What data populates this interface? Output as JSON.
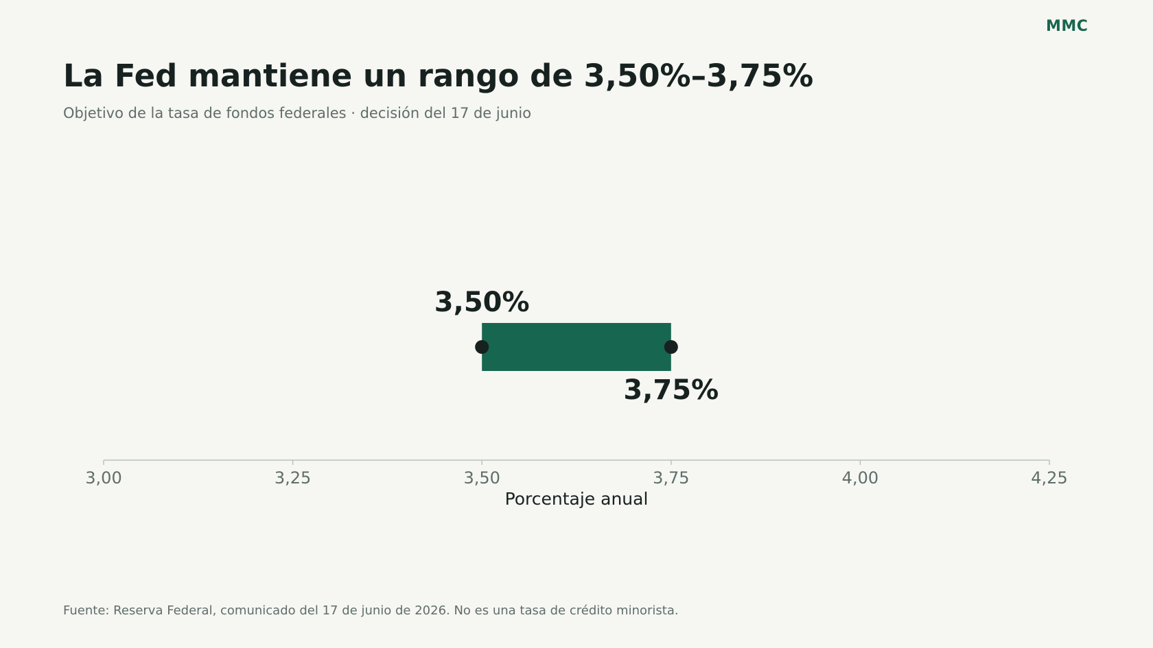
{
  "header": {
    "brand": "MMC",
    "title": "La Fed mantiene un rango de 3,50%–3,75%",
    "subtitle": "Objetivo de la tasa de fondos federales · decisión del 17 de junio"
  },
  "footer": {
    "source": "Fuente: Reserva Federal, comunicado del 17 de junio de 2026. No es una tasa de crédito minorista."
  },
  "colors": {
    "accent": "#176650",
    "text": "#172220",
    "muted": "#5f6e6a",
    "axis": "#b9c4be",
    "background": "#f6f6f2"
  },
  "chart_data": {
    "type": "bar",
    "orientation": "horizontal-range",
    "range": {
      "low": 3.5,
      "high": 3.75
    },
    "labels": {
      "low": "3,50%",
      "high": "3,75%"
    },
    "xlabel": "Porcentaje anual",
    "xlim": [
      3.0,
      4.25
    ],
    "ticks": [
      3.0,
      3.25,
      3.5,
      3.75,
      4.0,
      4.25
    ],
    "tick_labels": [
      "3,00",
      "3,25",
      "3,50",
      "3,75",
      "4,00",
      "4,25"
    ],
    "grid": false,
    "legend": "none"
  }
}
